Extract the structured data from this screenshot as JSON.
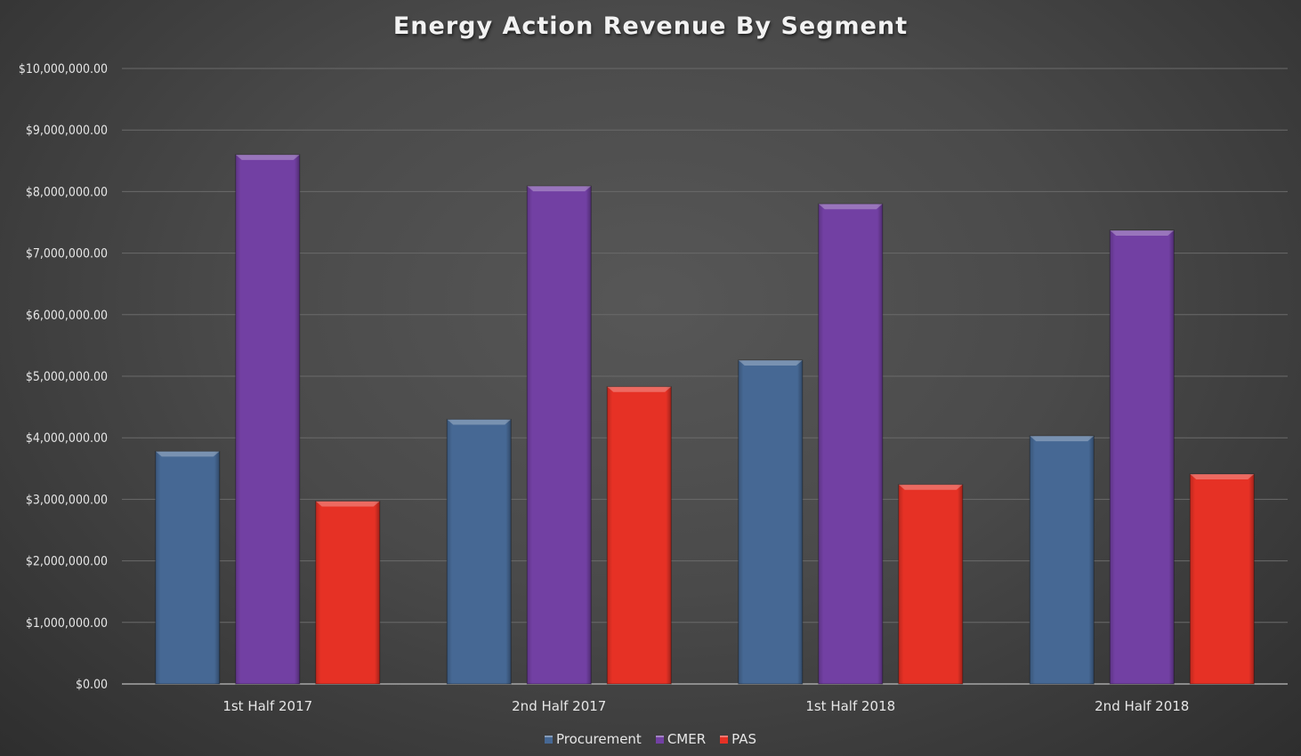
{
  "chart_data": {
    "type": "bar",
    "title": "Energy Action Revenue By Segment",
    "xlabel": "",
    "ylabel": "",
    "categories": [
      "1st Half 2017",
      "2nd Half 2017",
      "1st Half 2018",
      "2nd Half 2018"
    ],
    "series": [
      {
        "name": "Procurement",
        "color": "#466894",
        "values": [
          3780000,
          4300000,
          5260000,
          4030000
        ]
      },
      {
        "name": "CMER",
        "color": "#7240a3",
        "values": [
          8600000,
          8090000,
          7800000,
          7370000
        ]
      },
      {
        "name": "PAS",
        "color": "#e63125",
        "values": [
          2970000,
          4830000,
          3240000,
          3410000
        ]
      }
    ],
    "ylim": [
      0,
      10000000
    ],
    "yticks": [
      0,
      1000000,
      2000000,
      3000000,
      4000000,
      5000000,
      6000000,
      7000000,
      8000000,
      9000000,
      10000000
    ],
    "ytick_labels": [
      "$0.00",
      "$1,000,000.00",
      "$2,000,000.00",
      "$3,000,000.00",
      "$4,000,000.00",
      "$5,000,000.00",
      "$6,000,000.00",
      "$7,000,000.00",
      "$8,000,000.00",
      "$9,000,000.00",
      "$10,000,000.00"
    ],
    "grid": true,
    "legend": "bottom"
  }
}
